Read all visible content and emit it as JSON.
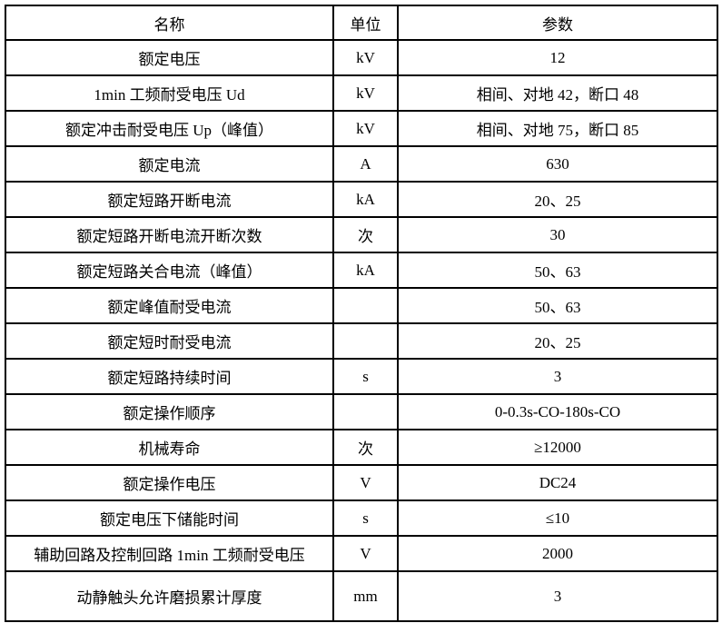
{
  "colors": {
    "border": "#000000",
    "text": "#000000",
    "background": "#ffffff"
  },
  "table": {
    "type": "table",
    "headers": [
      "名称",
      "单位",
      "参数"
    ],
    "rows": [
      {
        "name": "额定电压",
        "unit": "kV",
        "value": "12"
      },
      {
        "name": "1min 工频耐受电压 Ud",
        "unit": "kV",
        "value": "相间、对地 42，断口 48"
      },
      {
        "name": "额定冲击耐受电压 Up（峰值）",
        "unit": "kV",
        "value": "相间、对地 75，断口 85"
      },
      {
        "name": "额定电流",
        "unit": "A",
        "value": "630"
      },
      {
        "name": "额定短路开断电流",
        "unit": "kA",
        "value": "20、25"
      },
      {
        "name": "额定短路开断电流开断次数",
        "unit": "次",
        "value": "30"
      },
      {
        "name": "额定短路关合电流（峰值）",
        "unit": "kA",
        "value": "50、63"
      },
      {
        "name": "额定峰值耐受电流",
        "unit": "",
        "value": "50、63"
      },
      {
        "name": "额定短时耐受电流",
        "unit": "",
        "value": "20、25"
      },
      {
        "name": "额定短路持续时间",
        "unit": "s",
        "value": "3"
      },
      {
        "name": "额定操作顺序",
        "unit": "",
        "value": "0-0.3s-CO-180s-CO"
      },
      {
        "name": "机械寿命",
        "unit": "次",
        "value": "≥12000"
      },
      {
        "name": "额定操作电压",
        "unit": "V",
        "value": "DC24"
      },
      {
        "name": "额定电压下储能时间",
        "unit": "s",
        "value": "≤10"
      },
      {
        "name": "辅助回路及控制回路 1min 工频耐受电压",
        "unit": "V",
        "value": "2000"
      },
      {
        "name": "动静触头允许磨损累计厚度",
        "unit": "mm",
        "value": "3"
      }
    ]
  }
}
